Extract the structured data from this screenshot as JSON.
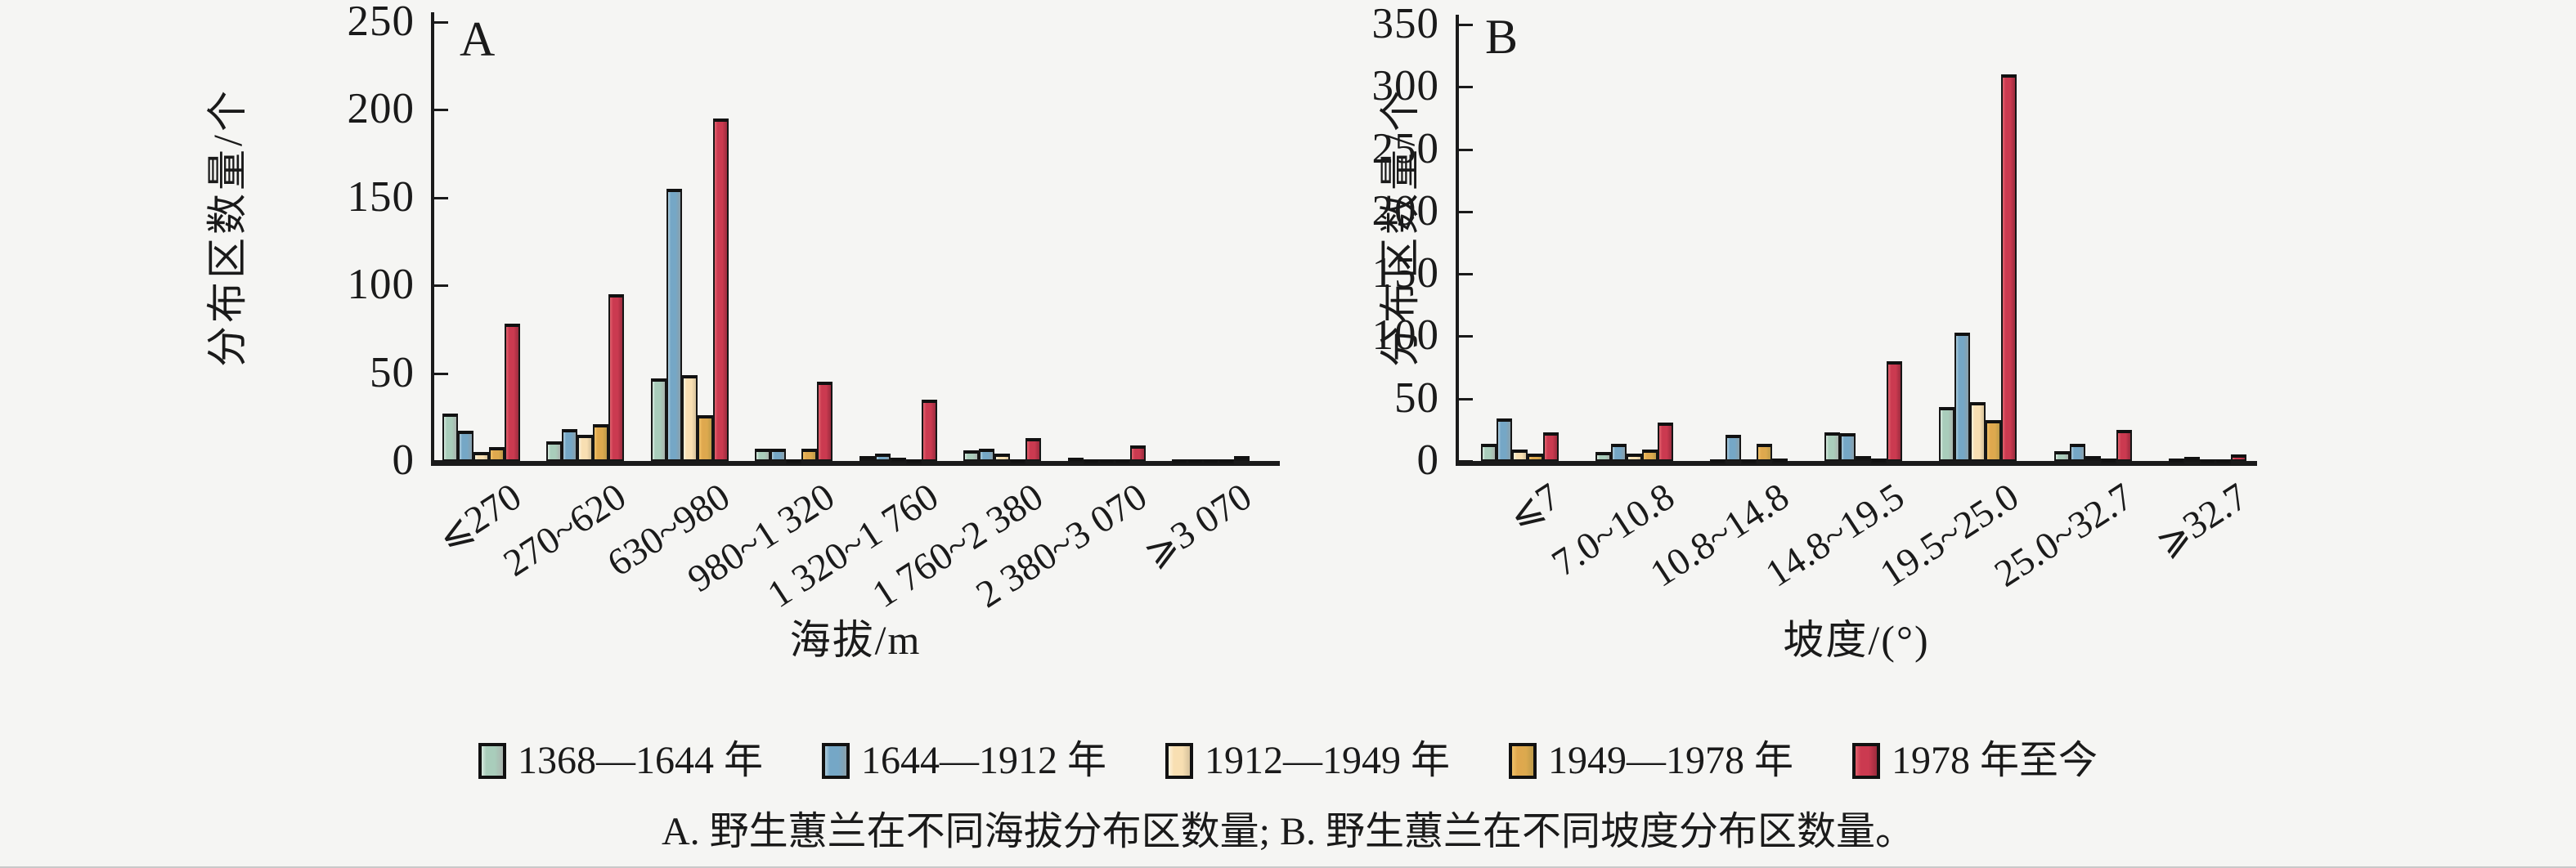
{
  "page": {
    "background": "#f5f5f3",
    "caption": "A. 野生蕙兰在不同海拔分布区数量; B. 野生蕙兰在不同坡度分布区数量。"
  },
  "legend": {
    "items": [
      {
        "label": "1368—1644 年",
        "color": "#a9cdbb"
      },
      {
        "label": "1644—1912 年",
        "color": "#75a7c6"
      },
      {
        "label": "1912—1949 年",
        "color": "#f8dfb2"
      },
      {
        "label": "1949—1978 年",
        "color": "#dca94e"
      },
      {
        "label": "1978 年至今",
        "color": "#cb3a50"
      }
    ]
  },
  "chart_data": [
    {
      "type": "bar",
      "panel": "A",
      "title": "A",
      "xlabel": "海拔/m",
      "ylabel": "分布区数量/个",
      "ylim": [
        0,
        250
      ],
      "yticks": [
        0,
        50,
        100,
        150,
        200,
        250
      ],
      "grid": false,
      "legend_position": "bottom",
      "categories": [
        "⩽270",
        "270~620",
        "630~980",
        "980~1 320",
        "1 320~1 760",
        "1 760~2 380",
        "2 380~3 070",
        "⩾3 070"
      ],
      "series": [
        {
          "name": "1368—1644 年",
          "values": [
            27,
            11,
            47,
            7,
            3,
            6,
            2,
            1
          ]
        },
        {
          "name": "1644—1912 年",
          "values": [
            17,
            18,
            155,
            7,
            4,
            7,
            1,
            1
          ]
        },
        {
          "name": "1912—1949 年",
          "values": [
            5,
            15,
            49,
            1,
            2,
            4,
            1,
            1
          ]
        },
        {
          "name": "1949—1978 年",
          "values": [
            8,
            21,
            26,
            7,
            1,
            1,
            1,
            1
          ]
        },
        {
          "name": "1978 年至今",
          "values": [
            78,
            95,
            195,
            45,
            35,
            13,
            9,
            3
          ]
        }
      ]
    },
    {
      "type": "bar",
      "panel": "B",
      "title": "B",
      "xlabel": "坡度/(°)",
      "ylabel": "分布区数量/个",
      "ylim": [
        0,
        350
      ],
      "yticks": [
        0,
        50,
        100,
        150,
        200,
        250,
        300,
        350
      ],
      "grid": false,
      "legend_position": "bottom",
      "categories": [
        "⩽7",
        "7.0~10.8",
        "10.8~14.8",
        "14.8~19.5",
        "19.5~25.0",
        "25.0~32.7",
        "⩾32.7"
      ],
      "series": [
        {
          "name": "1368—1644 年",
          "values": [
            14,
            7,
            1,
            23,
            43,
            8,
            2
          ]
        },
        {
          "name": "1644—1912 年",
          "values": [
            34,
            14,
            21,
            22,
            103,
            14,
            3
          ]
        },
        {
          "name": "1912—1949 年",
          "values": [
            9,
            6,
            1,
            4,
            47,
            4,
            1
          ]
        },
        {
          "name": "1949—1978 年",
          "values": [
            6,
            9,
            14,
            2,
            33,
            2,
            1
          ]
        },
        {
          "name": "1978 年至今",
          "values": [
            23,
            31,
            2,
            80,
            310,
            25,
            5
          ]
        }
      ]
    }
  ]
}
